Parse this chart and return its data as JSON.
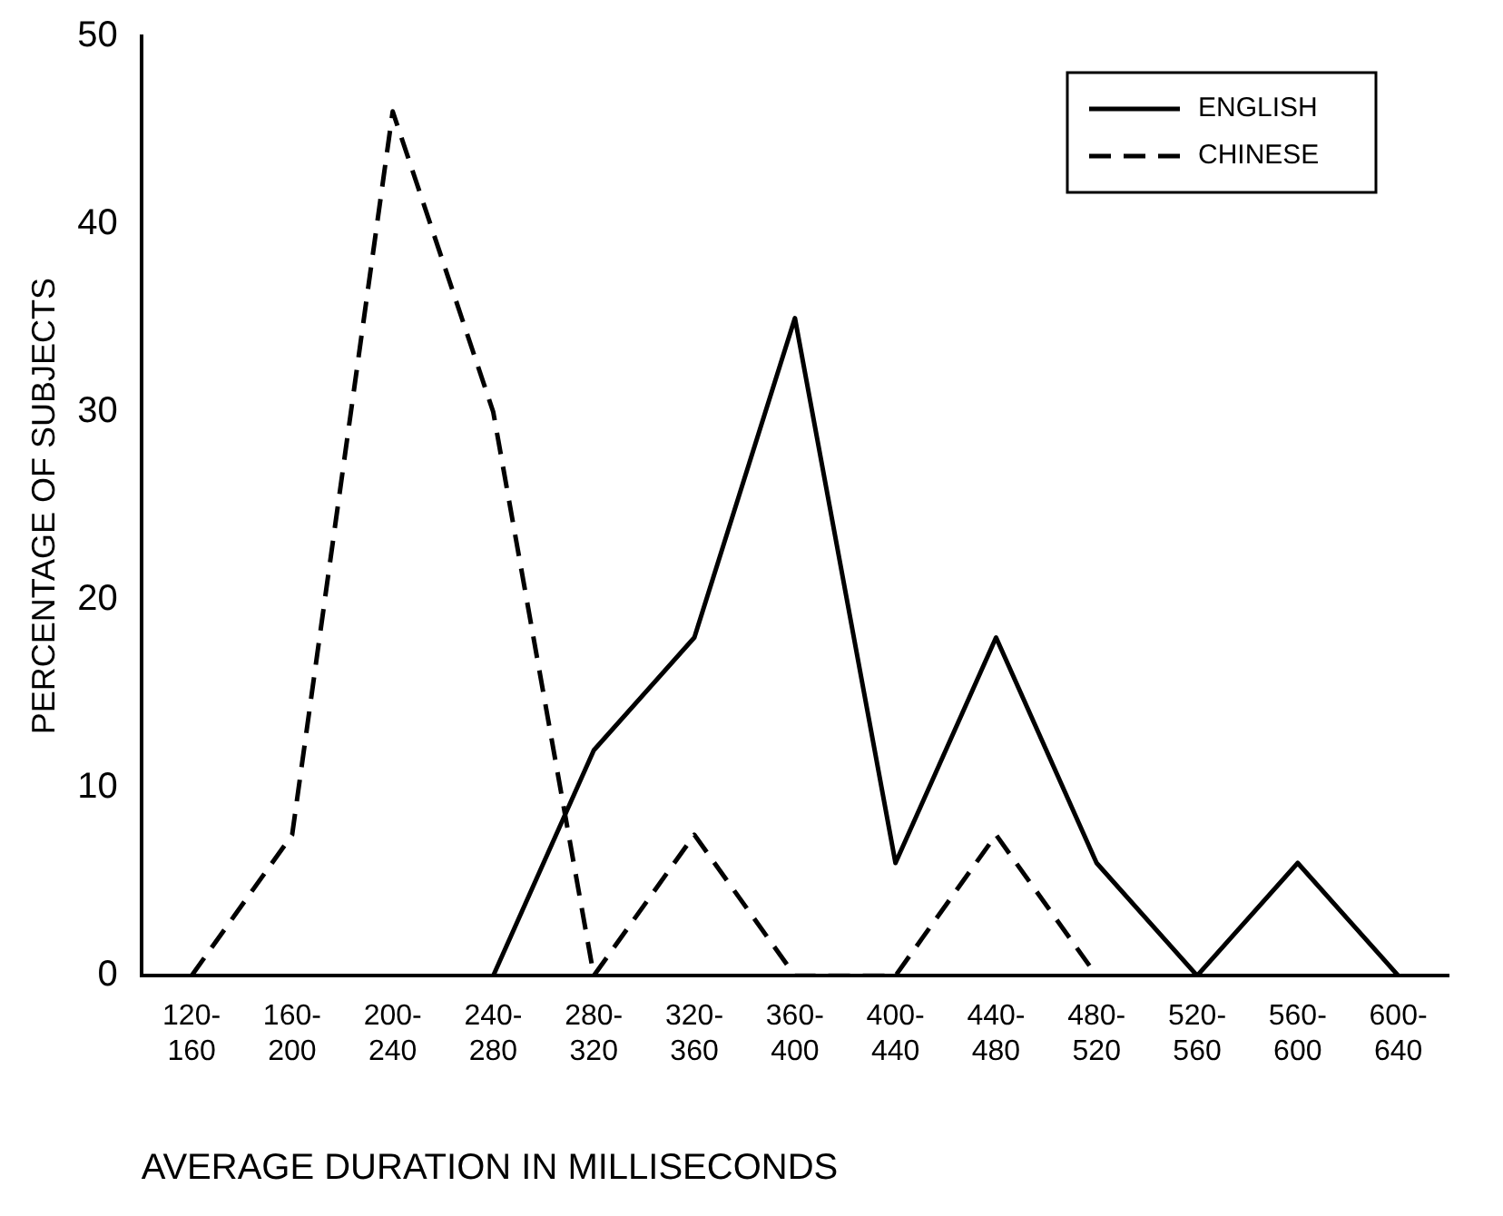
{
  "chart_data": {
    "type": "line",
    "xlabel": "AVERAGE DURATION IN MILLISECONDS",
    "ylabel": "PERCENTAGE OF SUBJECTS",
    "categories": [
      "120-\n160",
      "160-\n200",
      "200-\n240",
      "240-\n280",
      "280-\n320",
      "320-\n360",
      "360-\n400",
      "400-\n440",
      "440-\n480",
      "480-\n520",
      "520-\n560",
      "560-\n600",
      "600-\n640"
    ],
    "series": [
      {
        "name": "ENGLISH",
        "color": "#000000",
        "line_style": "solid",
        "values": [
          null,
          null,
          null,
          0,
          12,
          18,
          35,
          6,
          18,
          6,
          0,
          6,
          0
        ]
      },
      {
        "name": "CHINESE",
        "color": "#000000",
        "line_style": "dashed",
        "values": [
          0,
          7.5,
          46,
          30,
          0,
          7.5,
          0,
          0,
          7.5,
          0,
          null,
          null,
          null
        ]
      }
    ],
    "ylim": [
      0,
      50
    ],
    "yticks": [
      0,
      10,
      20,
      30,
      40,
      50
    ],
    "grid": false,
    "legend": "top right",
    "marker": "none"
  }
}
